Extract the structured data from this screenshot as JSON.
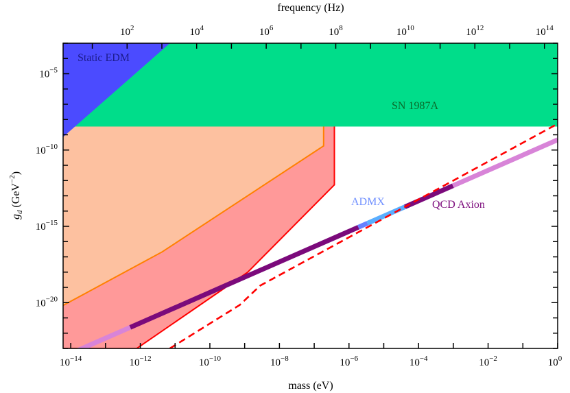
{
  "chart_data": {
    "type": "area",
    "xlabel": "mass (eV)",
    "ylabel": "g_d (GeV^-2)",
    "ylabel_parts": {
      "symbol": "g",
      "subscript": "d",
      "unit": "(GeV",
      "exp": "−2",
      "close": ")"
    },
    "top_xlabel": "frequency (Hz)",
    "x_scale": "log",
    "y_scale": "log",
    "xlim_log10": [
      -14.22,
      0
    ],
    "ylim_log10": [
      -23,
      -3
    ],
    "x_ticks": [
      {
        "exp": -14,
        "label": "10",
        "sup": "−14"
      },
      {
        "exp": -12,
        "label": "10",
        "sup": "−12"
      },
      {
        "exp": -10,
        "label": "10",
        "sup": "−10"
      },
      {
        "exp": -8,
        "label": "10",
        "sup": "−8"
      },
      {
        "exp": -6,
        "label": "10",
        "sup": "−6"
      },
      {
        "exp": -4,
        "label": "10",
        "sup": "−4"
      },
      {
        "exp": -2,
        "label": "10",
        "sup": "−2"
      },
      {
        "exp": 0,
        "label": "10",
        "sup": "0"
      }
    ],
    "top_ticks": [
      {
        "exp": 2,
        "label": "10",
        "sup": "2"
      },
      {
        "exp": 4,
        "label": "10",
        "sup": "4"
      },
      {
        "exp": 6,
        "label": "10",
        "sup": "6"
      },
      {
        "exp": 8,
        "label": "10",
        "sup": "8"
      },
      {
        "exp": 10,
        "label": "10",
        "sup": "10"
      },
      {
        "exp": 12,
        "label": "10",
        "sup": "12"
      },
      {
        "exp": 14,
        "label": "10",
        "sup": "14"
      }
    ],
    "freq_offset_log10": 14.38,
    "y_ticks": [
      {
        "exp": -5,
        "label": "10",
        "sup": "−5"
      },
      {
        "exp": -10,
        "label": "10",
        "sup": "−10"
      },
      {
        "exp": -15,
        "label": "10",
        "sup": "−15"
      },
      {
        "exp": -20,
        "label": "10",
        "sup": "−20"
      }
    ],
    "regions": [
      {
        "name": "red-region",
        "fill": "#ff9999",
        "stroke": "#ff0000",
        "points_log10": [
          [
            -14.22,
            -23
          ],
          [
            -12.1,
            -23
          ],
          [
            -8.91,
            -18.0
          ],
          [
            -6.42,
            -12.28
          ],
          [
            -6.42,
            -8.46
          ],
          [
            -14.22,
            -8.46
          ]
        ]
      },
      {
        "name": "orange-region",
        "fill": "#fdc1a0",
        "stroke": "#ff8000",
        "points_log10": [
          [
            -14.22,
            -20.18
          ],
          [
            -11.37,
            -16.67
          ],
          [
            -6.73,
            -9.73
          ],
          [
            -6.73,
            -8.46
          ],
          [
            -14.22,
            -8.46
          ]
        ]
      },
      {
        "name": "SN 1987A",
        "label": "SN 1987A",
        "fill": "#00dd8a",
        "text_color": "#0a6a2a",
        "points_log10": [
          [
            -14.22,
            -8.46
          ],
          [
            0,
            -8.46
          ],
          [
            0,
            -3
          ],
          [
            -14.22,
            -3
          ]
        ]
      },
      {
        "name": "Static EDM",
        "label": "Static EDM",
        "fill": "#4b4bff",
        "text_color": "#1c1c8c",
        "points_log10": [
          [
            -14.22,
            -9.15
          ],
          [
            -11.15,
            -3
          ],
          [
            -14.22,
            -3
          ]
        ]
      }
    ],
    "dashed_line": {
      "color": "#ff0000",
      "points_log10": [
        [
          -11.15,
          -23
        ],
        [
          -9.14,
          -20.15
        ],
        [
          -8.55,
          -18.88
        ],
        [
          0,
          -8.28
        ]
      ]
    },
    "qcd_axion": {
      "label": "QCD Axion",
      "label_color": "#7b0a7b",
      "relation": "log10(g) = log10(m) - 9.33",
      "segments": [
        {
          "from": -14.22,
          "to": -12.29,
          "color": "#d884d8"
        },
        {
          "from": -12.29,
          "to": -5.73,
          "color": "#7b0a7b"
        },
        {
          "from": -5.73,
          "to": -5.47,
          "color": "#6680ff"
        },
        {
          "from": -5.47,
          "to": -4.39,
          "color": "#5aaeff"
        },
        {
          "from": -4.39,
          "to": -3.01,
          "color": "#7b0a7b"
        },
        {
          "from": -3.01,
          "to": 0,
          "color": "#d884d8"
        }
      ]
    },
    "admx": {
      "label": "ADMX",
      "color": "#6f8fff"
    }
  }
}
